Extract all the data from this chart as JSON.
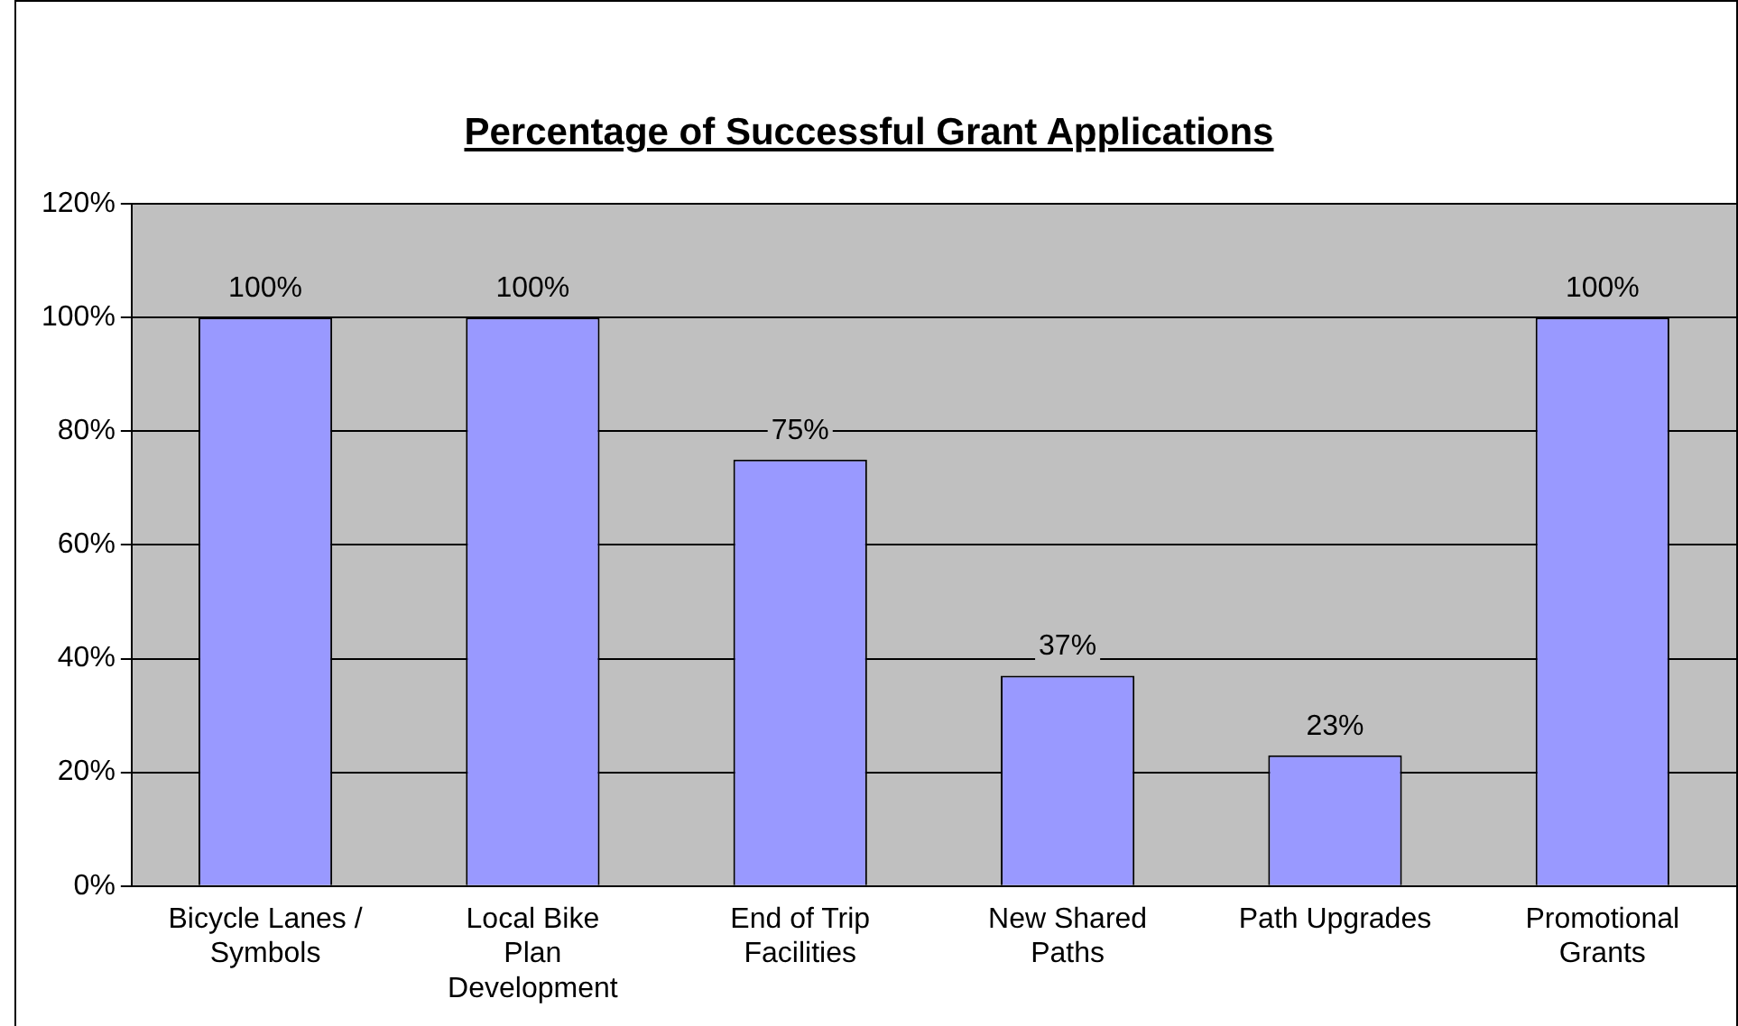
{
  "chart_data": {
    "type": "bar",
    "title": "Percentage of Successful Grant Applications",
    "categories": [
      "Bicycle Lanes / Symbols",
      "Local Bike Plan Development",
      "End of Trip Facilities",
      "New Shared Paths",
      "Path Upgrades",
      "Promotional Grants"
    ],
    "values": [
      100,
      100,
      75,
      37,
      23,
      100
    ],
    "value_labels": [
      "100%",
      "100%",
      "75%",
      "37%",
      "23%",
      "100%"
    ],
    "color": "#9999ff",
    "ylim": [
      0,
      120
    ],
    "yticks": [
      {
        "value": 0,
        "label": "0%"
      },
      {
        "value": 20,
        "label": "20%"
      },
      {
        "value": 40,
        "label": "40%"
      },
      {
        "value": 60,
        "label": "60%"
      },
      {
        "value": 80,
        "label": "80%"
      },
      {
        "value": 100,
        "label": "100%"
      },
      {
        "value": 120,
        "label": "120%"
      }
    ],
    "grid": "y",
    "legend": false
  }
}
